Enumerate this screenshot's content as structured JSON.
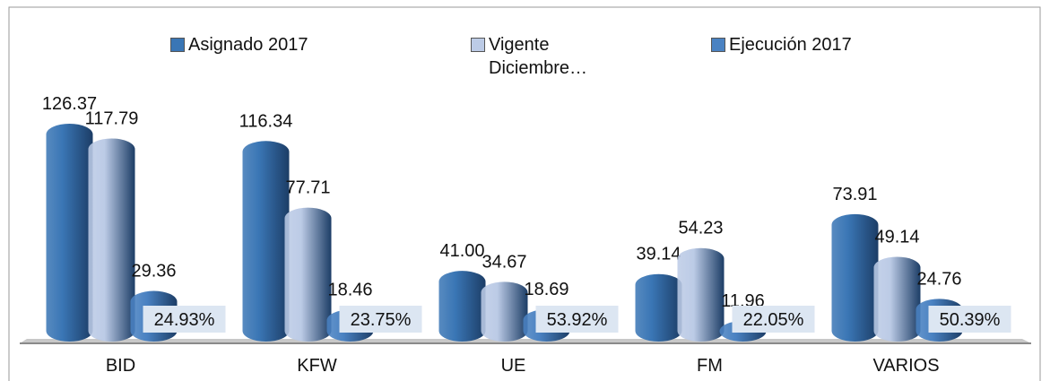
{
  "chart_data": {
    "type": "bar",
    "categories": [
      "BID",
      "KFW",
      "UE",
      "FM",
      "VARIOS"
    ],
    "series": [
      {
        "name": "Asignado 2017",
        "color": "#3a76b5",
        "values": [
          126.37,
          116.34,
          41.0,
          39.14,
          73.91
        ],
        "value_labels": [
          "126.37",
          "116.34",
          "41.00",
          "39.14",
          "73.91"
        ]
      },
      {
        "name": "Vigente Diciembre…",
        "color": "#bccbe6",
        "values": [
          117.79,
          77.71,
          34.67,
          54.23,
          49.14
        ],
        "value_labels": [
          "117.79",
          "77.71",
          "34.67",
          "54.23",
          "49.14"
        ]
      },
      {
        "name": "Ejecución  2017",
        "color": "#4a82c2",
        "values": [
          29.36,
          18.46,
          18.69,
          11.96,
          24.76
        ],
        "value_labels": [
          "29.36",
          "18.46",
          "18.69",
          "11.96",
          "24.76"
        ]
      }
    ],
    "annotations": [
      "24.93%",
      "23.75%",
      "53.92%",
      "22.05%",
      "50.39%"
    ]
  }
}
